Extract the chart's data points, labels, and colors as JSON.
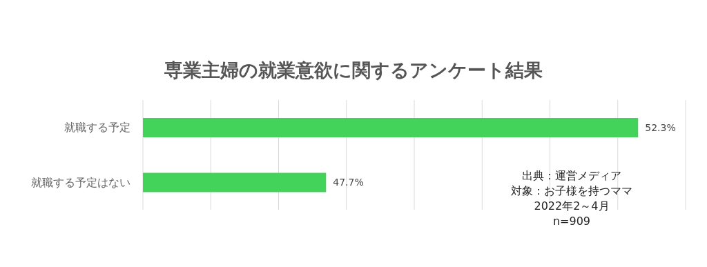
{
  "chart_data": {
    "type": "bar",
    "orientation": "horizontal",
    "title": "専業主婦の就業意欲に関するアンケート結果",
    "categories": [
      "就職する予定",
      "就職する予定はない"
    ],
    "values": [
      52.3,
      47.7
    ],
    "value_labels": [
      "52.3%",
      "47.7%"
    ],
    "color": "#44d35a",
    "xlim": [
      45,
      53
    ],
    "xticks": [
      {
        "value": 45,
        "label": null
      },
      {
        "value": 46,
        "label": null
      },
      {
        "value": 47,
        "label": null
      },
      {
        "value": 48,
        "label": null
      },
      {
        "value": 49,
        "label": null
      },
      {
        "value": 50,
        "label": null
      },
      {
        "value": 51,
        "label": null
      },
      {
        "value": 52,
        "label": null
      },
      {
        "value": 53,
        "label": null
      }
    ],
    "tick_labels": "y",
    "grid": "x",
    "legend": false,
    "annotations": [
      "出典：運営メディア",
      "対象：お子様を持つママ",
      "2022年2～4月",
      "n=909"
    ]
  }
}
